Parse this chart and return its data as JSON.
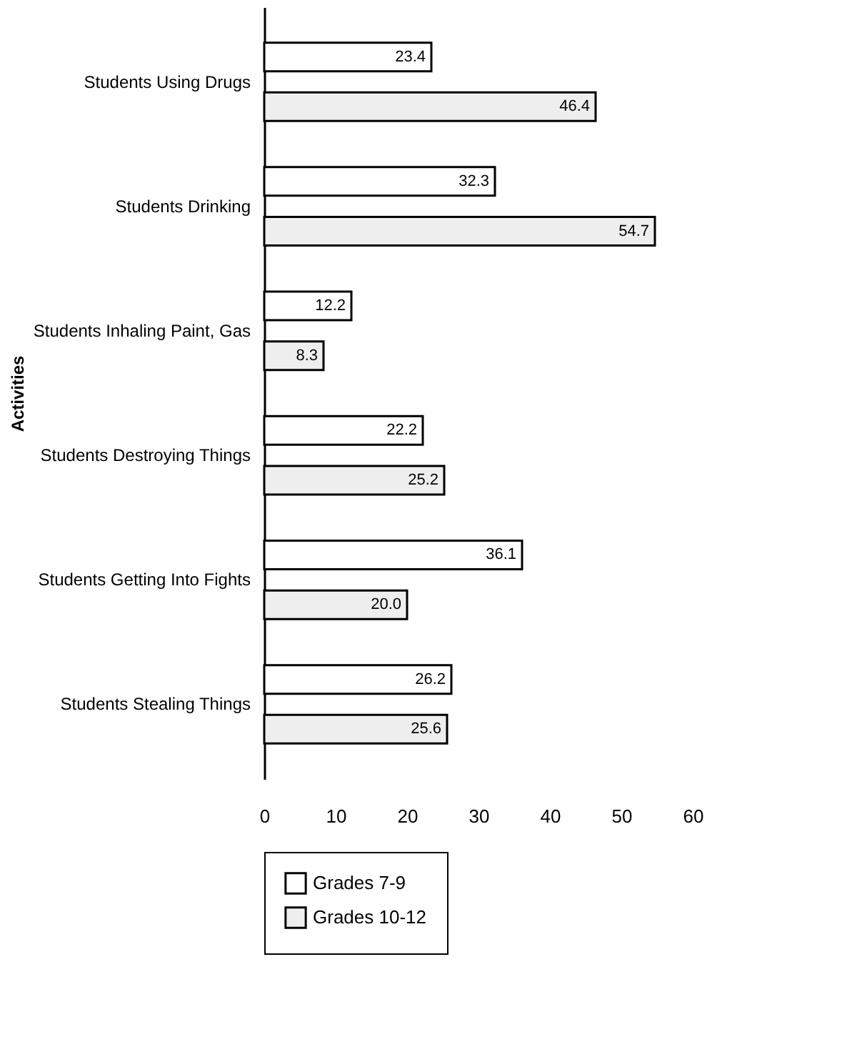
{
  "chart_data": {
    "type": "bar",
    "orientation": "horizontal",
    "ylabel": "Activities",
    "categories": [
      "Students Using Drugs",
      "Students Drinking",
      "Students Inhaling Paint, Gas",
      "Students Destroying Things",
      "Students Getting Into Fights",
      "Students Stealing Things"
    ],
    "series": [
      {
        "name": "Grades 7-9",
        "color": "#ffffff",
        "values": [
          23.4,
          32.3,
          12.2,
          22.2,
          36.1,
          26.2
        ],
        "value_labels": [
          "23.4",
          "32.3",
          "12.2",
          "22.2",
          "36.1",
          "26.2"
        ]
      },
      {
        "name": "Grades 10-12",
        "color": "#eeeeee",
        "values": [
          46.4,
          54.7,
          8.3,
          25.2,
          20.0,
          25.6
        ],
        "value_labels": [
          "46.4",
          "54.7",
          "8.3",
          "25.2",
          "20.0",
          "25.6"
        ]
      }
    ],
    "xlim": [
      0,
      60
    ],
    "xticks": [
      0,
      10,
      20,
      30,
      40,
      50,
      60
    ],
    "grid": false,
    "legend": "bottom"
  }
}
